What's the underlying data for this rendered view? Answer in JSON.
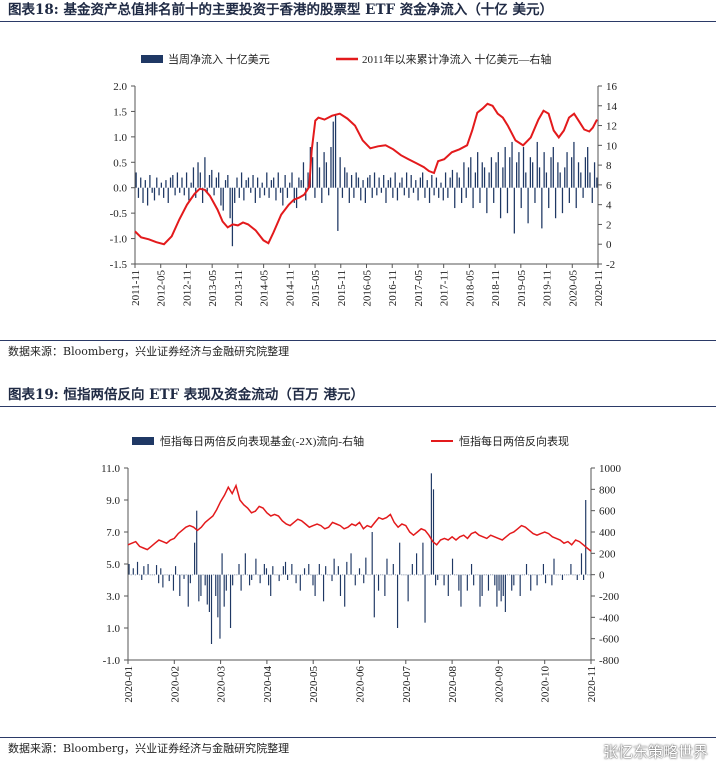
{
  "figures": [
    {
      "title": "图表18:  基金资产总值排名前十的主要投资于香港的股票型 ETF 资金净流入（十亿 美元）",
      "source": "数据来源：Bloomberg，兴业证券经济与金融研究院整理"
    },
    {
      "title": "图表19:  恒指两倍反向 ETF 表现及资金流动（百万 港元）",
      "source": "数据来源：Bloomberg，兴业证券经济与金融研究院整理"
    }
  ],
  "watermark": "张忆东策略世界",
  "colors": {
    "bar": "#1f3864",
    "line": "#e31a1c",
    "axis": "#555555"
  },
  "chart_data": [
    {
      "type": "bar+line",
      "legend": [
        "当周净流入  十亿美元",
        "2011年以来累计净流入  十亿美元—右轴"
      ],
      "y_left": {
        "min": -1.5,
        "max": 2.0,
        "ticks": [
          "2.0",
          "1.5",
          "1.0",
          "0.5",
          "0.0",
          "-0.5",
          "-1.0",
          "-1.5"
        ]
      },
      "y_right": {
        "min": -2,
        "max": 16,
        "ticks": [
          "16",
          "14",
          "12",
          "10",
          "8",
          "6",
          "4",
          "2",
          "0",
          "-2"
        ]
      },
      "x_ticks": [
        "2011-11",
        "2012-05",
        "2012-11",
        "2013-05",
        "2013-11",
        "2014-05",
        "2014-11",
        "2015-05",
        "2015-11",
        "2016-05",
        "2016-11",
        "2017-05",
        "2017-11",
        "2018-05",
        "2018-11",
        "2019-05",
        "2019-11",
        "2020-05",
        "2020-11"
      ],
      "bar_weekly_values": [
        0.3,
        -0.2,
        0.2,
        -0.3,
        0.15,
        -0.35,
        0.25,
        -0.1,
        -0.25,
        0.2,
        -0.15,
        0.1,
        -0.2,
        0.15,
        -0.3,
        0.2,
        0.25,
        -0.15,
        0.3,
        -0.1,
        0.2,
        -0.15,
        0.3,
        -0.25,
        0.1,
        0.4,
        -0.2,
        0.5,
        0.3,
        -0.3,
        0.6,
        -0.1,
        0.25,
        0.35,
        -0.15,
        0.2,
        0.3,
        -0.35,
        -0.45,
        0.15,
        0.25,
        -0.6,
        -1.15,
        -0.3,
        0.2,
        -0.2,
        0.3,
        -0.25,
        0.15,
        0.2,
        -0.1,
        0.25,
        -0.3,
        0.2,
        -0.2,
        0.1,
        -0.15,
        0.3,
        -0.2,
        0.15,
        0.2,
        -0.25,
        0.3,
        -0.1,
        -0.35,
        0.25,
        -0.2,
        0.1,
        0.3,
        -0.3,
        -0.4,
        0.2,
        0.15,
        0.5,
        -0.25,
        0.3,
        0.8,
        0.6,
        -0.2,
        0.9,
        0.4,
        -0.3,
        0.7,
        0.5,
        -0.15,
        0.8,
        1.3,
        1.45,
        -0.85,
        0.6,
        -0.2,
        0.4,
        0.3,
        -0.3,
        0.25,
        -0.2,
        0.3,
        0.2,
        -0.25,
        0.15,
        -0.3,
        0.2,
        0.25,
        -0.2,
        0.3,
        -0.15,
        0.2,
        -0.1,
        0.25,
        -0.3,
        0.15,
        0.2,
        -0.2,
        0.3,
        -0.25,
        0.1,
        0.2,
        -0.15,
        0.3,
        -0.2,
        0.25,
        -0.1,
        0.15,
        -0.25,
        0.2,
        0.3,
        -0.2,
        0.15,
        -0.3,
        0.25,
        -0.15,
        0.2,
        -0.2,
        0.1,
        -0.25,
        0.3,
        -0.2,
        0.2,
        0.35,
        -0.4,
        0.3,
        0.2,
        -0.3,
        0.5,
        -0.2,
        0.4,
        0.6,
        -0.4,
        0.3,
        0.7,
        -0.3,
        0.5,
        0.4,
        -0.5,
        0.3,
        0.6,
        -0.3,
        0.5,
        0.7,
        -0.6,
        0.4,
        0.8,
        -0.5,
        0.6,
        0.9,
        -0.9,
        0.5,
        0.7,
        -0.4,
        0.8,
        0.3,
        -0.7,
        0.6,
        0.5,
        -0.3,
        0.9,
        0.4,
        -0.8,
        0.7,
        0.3,
        -0.4,
        0.6,
        0.8,
        -0.6,
        0.5,
        0.3,
        -0.5,
        0.4,
        0.7,
        -0.3,
        0.6,
        0.9,
        -0.4,
        0.5,
        0.3,
        -0.2,
        0.6,
        0.8,
        0.3,
        -0.3,
        0.5,
        0.2
      ],
      "line_cumulative": [
        [
          2011.83,
          1.3
        ],
        [
          2011.95,
          0.7
        ],
        [
          2012.1,
          0.5
        ],
        [
          2012.25,
          0.2
        ],
        [
          2012.4,
          0.0
        ],
        [
          2012.55,
          0.8
        ],
        [
          2012.7,
          2.5
        ],
        [
          2012.85,
          4.0
        ],
        [
          2013.0,
          5.1
        ],
        [
          2013.1,
          5.6
        ],
        [
          2013.2,
          5.5
        ],
        [
          2013.3,
          4.9
        ],
        [
          2013.45,
          3.5
        ],
        [
          2013.55,
          2.3
        ],
        [
          2013.65,
          1.7
        ],
        [
          2013.75,
          2.0
        ],
        [
          2013.85,
          1.9
        ],
        [
          2013.95,
          2.2
        ],
        [
          2014.05,
          2.0
        ],
        [
          2014.2,
          1.4
        ],
        [
          2014.35,
          0.4
        ],
        [
          2014.45,
          0.1
        ],
        [
          2014.55,
          1.2
        ],
        [
          2014.7,
          3.0
        ],
        [
          2014.85,
          4.0
        ],
        [
          2014.95,
          4.5
        ],
        [
          2015.05,
          4.7
        ],
        [
          2015.15,
          5.0
        ],
        [
          2015.25,
          5.8
        ],
        [
          2015.3,
          9.5
        ],
        [
          2015.37,
          12.5
        ],
        [
          2015.43,
          12.8
        ],
        [
          2015.55,
          12.6
        ],
        [
          2015.7,
          13.0
        ],
        [
          2015.85,
          13.2
        ],
        [
          2016.0,
          12.7
        ],
        [
          2016.15,
          12.0
        ],
        [
          2016.3,
          10.5
        ],
        [
          2016.45,
          9.7
        ],
        [
          2016.6,
          9.9
        ],
        [
          2016.75,
          10.0
        ],
        [
          2016.9,
          9.6
        ],
        [
          2017.05,
          9.0
        ],
        [
          2017.2,
          8.6
        ],
        [
          2017.35,
          8.2
        ],
        [
          2017.5,
          7.8
        ],
        [
          2017.6,
          7.4
        ],
        [
          2017.7,
          7.2
        ],
        [
          2017.78,
          8.4
        ],
        [
          2017.9,
          8.6
        ],
        [
          2018.05,
          9.3
        ],
        [
          2018.2,
          9.6
        ],
        [
          2018.35,
          10.0
        ],
        [
          2018.45,
          11.5
        ],
        [
          2018.55,
          13.3
        ],
        [
          2018.65,
          13.7
        ],
        [
          2018.75,
          14.2
        ],
        [
          2018.85,
          14.0
        ],
        [
          2018.95,
          13.2
        ],
        [
          2019.05,
          12.8
        ],
        [
          2019.15,
          12.0
        ],
        [
          2019.3,
          10.5
        ],
        [
          2019.45,
          10.0
        ],
        [
          2019.6,
          10.8
        ],
        [
          2019.75,
          12.6
        ],
        [
          2019.85,
          13.5
        ],
        [
          2019.95,
          13.2
        ],
        [
          2020.05,
          11.5
        ],
        [
          2020.15,
          10.8
        ],
        [
          2020.25,
          11.5
        ],
        [
          2020.35,
          12.8
        ],
        [
          2020.45,
          13.2
        ],
        [
          2020.55,
          12.4
        ],
        [
          2020.65,
          11.6
        ],
        [
          2020.75,
          11.4
        ],
        [
          2020.82,
          11.8
        ],
        [
          2020.9,
          12.6
        ]
      ]
    },
    {
      "type": "bar+line",
      "legend": [
        "恒指每日两倍反向表现基金(-2X)流向-右轴",
        "恒指每日两倍反向表现"
      ],
      "y_left": {
        "min": -1.0,
        "max": 11.0,
        "ticks": [
          "11.0",
          "9.0",
          "7.0",
          "5.0",
          "3.0",
          "1.0",
          "-1.0"
        ]
      },
      "y_right": {
        "min": -800,
        "max": 1000,
        "ticks": [
          "1000",
          "800",
          "600",
          "400",
          "200",
          "0",
          "-200",
          "-400",
          "-600",
          "-800"
        ]
      },
      "x_ticks": [
        "2020-01",
        "2020-02",
        "2020-03",
        "2020-04",
        "2020-05",
        "2020-06",
        "2020-07",
        "2020-08",
        "2020-09",
        "2020-10",
        "2020-11"
      ],
      "bar_daily_values": [
        100,
        0,
        60,
        0,
        120,
        0,
        -50,
        80,
        0,
        100,
        0,
        0,
        0,
        90,
        -80,
        60,
        -120,
        0,
        0,
        -60,
        0,
        -150,
        80,
        0,
        -200,
        0,
        -40,
        0,
        -300,
        -80,
        0,
        300,
        600,
        -250,
        -200,
        0,
        -100,
        -280,
        -350,
        -650,
        0,
        -200,
        -400,
        -600,
        200,
        -300,
        -150,
        0,
        -500,
        -100,
        0,
        0,
        100,
        -150,
        0,
        200,
        0,
        -100,
        -50,
        0,
        150,
        0,
        -80,
        0,
        100,
        60,
        -100,
        -200,
        80,
        0,
        0,
        -60,
        0,
        80,
        120,
        -50,
        0,
        100,
        0,
        -80,
        0,
        -150,
        0,
        60,
        0,
        100,
        0,
        -100,
        -200,
        0,
        100,
        0,
        -250,
        80,
        0,
        0,
        -60,
        150,
        0,
        80,
        -200,
        0,
        -300,
        120,
        0,
        200,
        0,
        -100,
        0,
        60,
        0,
        -80,
        160,
        0,
        0,
        400,
        -400,
        0,
        -150,
        0,
        0,
        -200,
        150,
        0,
        0,
        100,
        0,
        -500,
        300,
        0,
        0,
        0,
        -250,
        0,
        100,
        0,
        200,
        0,
        0,
        300,
        -450,
        0,
        0,
        950,
        800,
        -100,
        -50,
        0,
        0,
        -100,
        0,
        -200,
        0,
        150,
        0,
        0,
        -150,
        -300,
        0,
        0,
        -150,
        0,
        100,
        -100,
        0,
        0,
        -300,
        -200,
        0,
        0,
        -150,
        0,
        0,
        -100,
        -300,
        -150,
        -250,
        -200,
        -350,
        0,
        0,
        -150,
        -100,
        0,
        0,
        -200,
        0,
        0,
        100,
        0,
        -150,
        0,
        0,
        -100,
        0,
        0,
        100,
        -80,
        0,
        0,
        -100,
        150,
        0,
        0,
        0,
        -50,
        0,
        0,
        0,
        100,
        0,
        0,
        -50,
        0,
        200,
        -50,
        700,
        0,
        0
      ],
      "line_values": [
        6.2,
        6.3,
        6.4,
        6.1,
        6.0,
        5.9,
        6.1,
        6.3,
        6.5,
        6.4,
        6.3,
        6.5,
        6.6,
        6.9,
        7.1,
        7.3,
        7.4,
        7.3,
        7.1,
        7.3,
        7.6,
        7.8,
        8.0,
        8.4,
        8.9,
        9.3,
        9.8,
        9.4,
        9.9,
        9.0,
        8.7,
        8.5,
        8.2,
        8.3,
        8.6,
        8.5,
        8.2,
        8.0,
        8.1,
        8.0,
        7.7,
        7.5,
        7.4,
        7.6,
        7.8,
        7.7,
        7.5,
        7.3,
        7.4,
        7.5,
        7.4,
        7.2,
        7.3,
        7.6,
        7.5,
        7.4,
        7.2,
        7.3,
        7.5,
        7.4,
        7.6,
        7.2,
        7.4,
        7.3,
        7.6,
        7.9,
        7.8,
        7.9,
        8.1,
        7.6,
        7.3,
        7.5,
        7.4,
        7.0,
        6.8,
        7.0,
        7.2,
        7.1,
        6.8,
        6.4,
        6.2,
        6.5,
        6.6,
        6.5,
        6.7,
        6.5,
        6.7,
        6.8,
        6.6,
        6.9,
        7.0,
        6.8,
        6.7,
        6.6,
        6.8,
        6.7,
        6.6,
        6.5,
        6.7,
        6.9,
        7.0,
        7.2,
        7.4,
        7.3,
        7.1,
        6.9,
        6.8,
        6.9,
        7.0,
        6.9,
        6.7,
        6.6,
        6.5,
        6.3,
        6.4,
        6.2,
        6.5,
        6.4,
        6.2,
        6.0,
        5.8
      ]
    }
  ]
}
